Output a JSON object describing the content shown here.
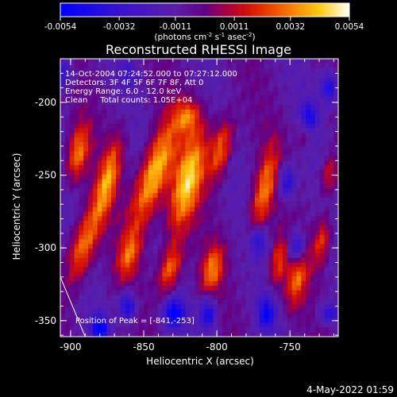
{
  "colorbar": {
    "tick_labels": [
      "-0.0054",
      "-0.0032",
      "-0.0011",
      "0.0011",
      "0.0032",
      "0.0054"
    ],
    "min": -0.0054,
    "max": 0.0054,
    "unit_prefix": "(photons cm",
    "unit_exp1": "-2",
    "unit_mid": " s",
    "unit_exp2": "-1",
    "unit_mid2": " asec",
    "unit_exp3": "-2",
    "unit_suffix": ")"
  },
  "chart_data": {
    "type": "heatmap",
    "title": "Reconstructed RHESSI Image",
    "xlabel": "Heliocentric X (arcsec)",
    "ylabel": "Heliocentric Y (arcsec)",
    "xlim": [
      -907,
      -717
    ],
    "ylim": [
      -361,
      -170
    ],
    "x_ticks": [
      -900,
      -850,
      -800,
      -750
    ],
    "y_ticks": [
      -350,
      -300,
      -250,
      -200
    ],
    "x_tick_labels": [
      "-900",
      "-850",
      "-800",
      "-750"
    ],
    "y_tick_labels": [
      "-350",
      "-300",
      "-250",
      "-200"
    ],
    "info_lines": [
      "14-Oct-2004 07:24:52.000 to 07:27:12.000",
      "Detectors: 3F 4F 5F 6F 7F 8F, Att 0",
      "Energy Range: 6.0 - 12.0 keV",
      "Clean     Total counts: 1.05E+04"
    ],
    "peak_label": "Position of Peak = [-841,-253]",
    "peak": [
      -841,
      -253
    ],
    "limb_line": [
      [
        -907,
        -320
      ],
      [
        -890,
        -361
      ]
    ],
    "blobs": [
      {
        "x": -895,
        "y": -235,
        "sx": 5,
        "sy": 14,
        "amp": 0.0038,
        "tilt": 10
      },
      {
        "x": -892,
        "y": -300,
        "sx": 6,
        "sy": 18,
        "amp": 0.004,
        "tilt": 14
      },
      {
        "x": -875,
        "y": -255,
        "sx": 5,
        "sy": 22,
        "amp": 0.0042,
        "tilt": 14
      },
      {
        "x": -860,
        "y": -305,
        "sx": 5,
        "sy": 12,
        "amp": 0.003,
        "tilt": 14
      },
      {
        "x": -843,
        "y": -250,
        "sx": 7,
        "sy": 26,
        "amp": 0.0054,
        "tilt": 18
      },
      {
        "x": -832,
        "y": -315,
        "sx": 5,
        "sy": 12,
        "amp": 0.0038,
        "tilt": 14
      },
      {
        "x": -820,
        "y": -255,
        "sx": 7,
        "sy": 26,
        "amp": 0.005,
        "tilt": 14
      },
      {
        "x": -803,
        "y": -315,
        "sx": 5,
        "sy": 12,
        "amp": 0.0036,
        "tilt": 12
      },
      {
        "x": -820,
        "y": -210,
        "sx": 6,
        "sy": 8,
        "amp": 0.003,
        "tilt": 10
      },
      {
        "x": -797,
        "y": -232,
        "sx": 5,
        "sy": 15,
        "amp": 0.0038,
        "tilt": 12
      },
      {
        "x": -768,
        "y": -262,
        "sx": 5,
        "sy": 22,
        "amp": 0.0038,
        "tilt": 12
      },
      {
        "x": -758,
        "y": -310,
        "sx": 4,
        "sy": 12,
        "amp": 0.003,
        "tilt": 8
      },
      {
        "x": -745,
        "y": -320,
        "sx": 5,
        "sy": 15,
        "amp": 0.0034,
        "tilt": 10
      },
      {
        "x": -728,
        "y": -295,
        "sx": 4,
        "sy": 12,
        "amp": 0.003,
        "tilt": 8
      },
      {
        "x": -723,
        "y": -250,
        "sx": 4,
        "sy": 10,
        "amp": 0.0026,
        "tilt": 8
      },
      {
        "x": -740,
        "y": -220,
        "sx": 4,
        "sy": 8,
        "amp": 0.0014,
        "tilt": 8
      }
    ],
    "negative_blobs": [
      {
        "x": -880,
        "y": -355,
        "sx": 4,
        "sy": 6,
        "amp": -0.0045
      },
      {
        "x": -861,
        "y": -340,
        "sx": 4,
        "sy": 7,
        "amp": -0.004
      },
      {
        "x": -829,
        "y": -345,
        "sx": 5,
        "sy": 7,
        "amp": -0.0045
      },
      {
        "x": -806,
        "y": -345,
        "sx": 4,
        "sy": 8,
        "amp": -0.004
      },
      {
        "x": -766,
        "y": -345,
        "sx": 4,
        "sy": 8,
        "amp": -0.004
      },
      {
        "x": -772,
        "y": -295,
        "sx": 4,
        "sy": 7,
        "amp": -0.0032
      },
      {
        "x": -745,
        "y": -300,
        "sx": 4,
        "sy": 8,
        "amp": -0.004
      },
      {
        "x": -752,
        "y": -255,
        "sx": 4,
        "sy": 8,
        "amp": -0.0035
      },
      {
        "x": -737,
        "y": -210,
        "sx": 4,
        "sy": 7,
        "amp": -0.0038
      },
      {
        "x": -723,
        "y": -190,
        "sx": 4,
        "sy": 8,
        "amp": -0.0035
      },
      {
        "x": -906,
        "y": -180,
        "sx": 5,
        "sy": 7,
        "amp": -0.003
      },
      {
        "x": -860,
        "y": -180,
        "sx": 4,
        "sy": 6,
        "amp": -0.002
      },
      {
        "x": -723,
        "y": -345,
        "sx": 5,
        "sy": 5,
        "amp": -0.003
      }
    ],
    "grid": false
  },
  "timestamp": "4-May-2022 01:59"
}
